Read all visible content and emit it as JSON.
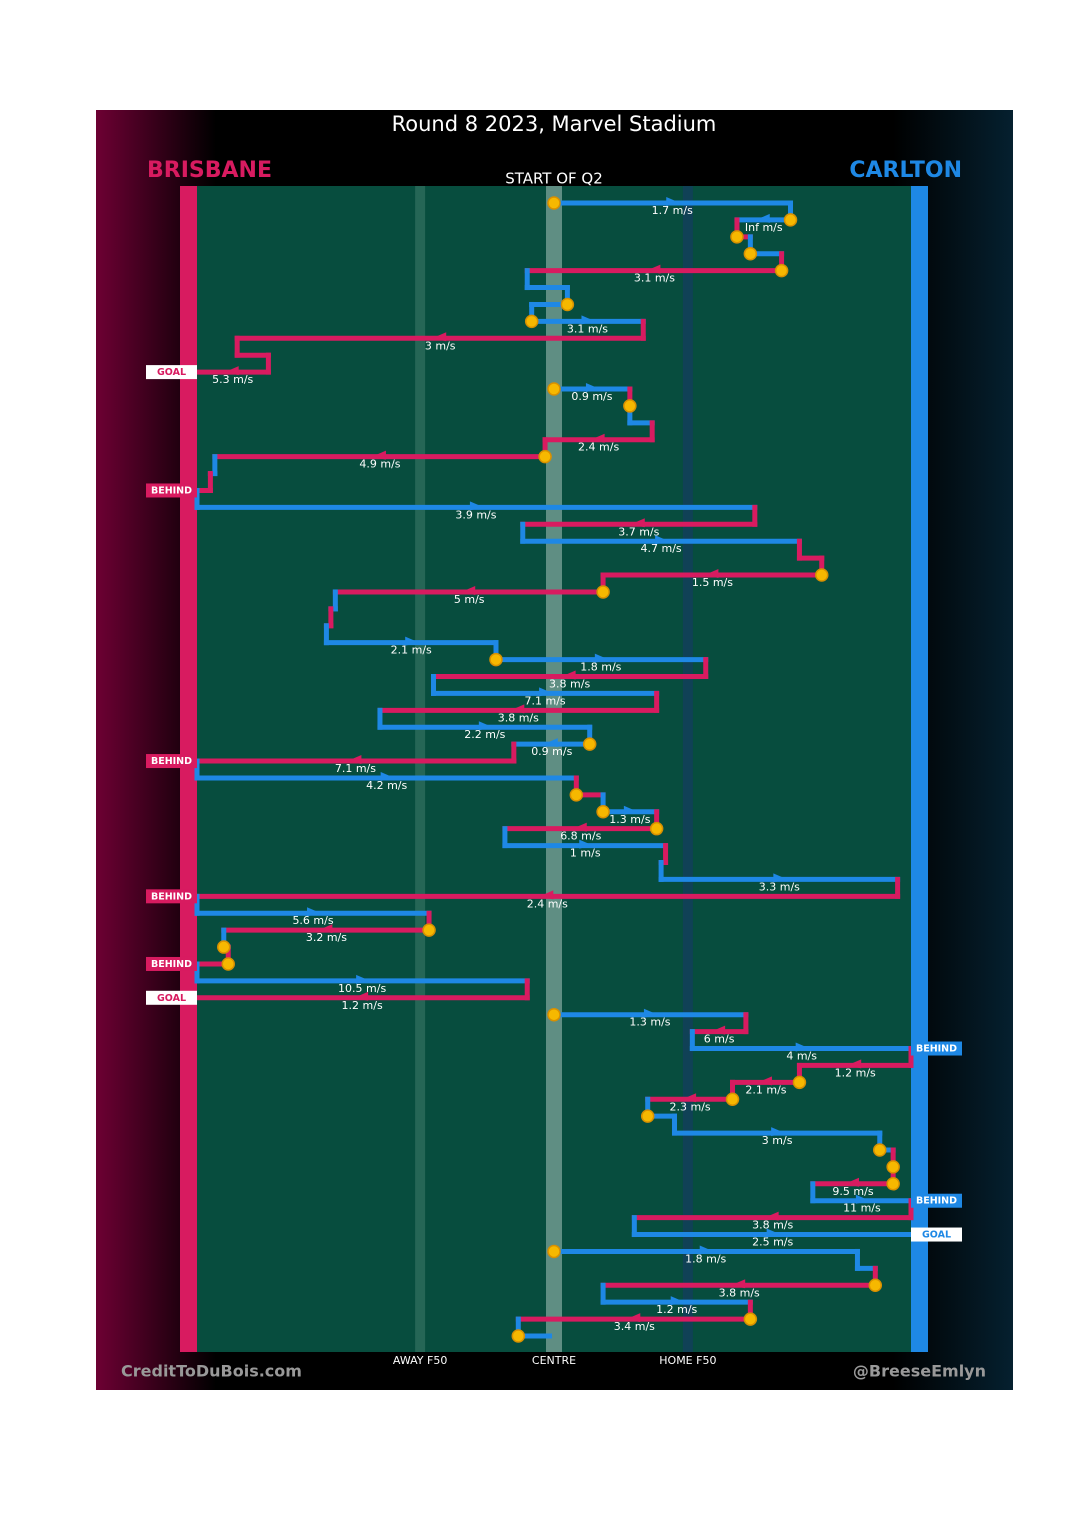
{
  "chart_data": {
    "type": "possession-chain",
    "title": "Round 8 2023, Marvel Stadium",
    "subtitle": "START OF Q2",
    "teams": [
      {
        "name": "BRISBANE",
        "color": "#d81b60"
      },
      {
        "name": "CARLTON",
        "color": "#1e88e5"
      }
    ],
    "xlim": [
      0,
      160
    ],
    "xticks": [
      {
        "value": 50,
        "label": "AWAY F50"
      },
      {
        "value": 80,
        "label": "CENTRE"
      },
      {
        "value": 110,
        "label": "HOME F50"
      }
    ],
    "segments": [
      {
        "team": 1,
        "x": [
          80,
          133
        ],
        "label": "1.7 m/s",
        "stoppage": true
      },
      {
        "team": 1,
        "x": [
          133,
          121
        ],
        "label": "Inf m/s",
        "stoppage": true
      },
      {
        "team": 0,
        "x": [
          121,
          124
        ],
        "stoppage": true
      },
      {
        "team": 1,
        "x": [
          124,
          131
        ],
        "stoppage": true
      },
      {
        "team": 0,
        "x": [
          131,
          74
        ],
        "label": "3.1 m/s",
        "stoppage": true
      },
      {
        "team": 1,
        "x": [
          74,
          83
        ]
      },
      {
        "team": 1,
        "x": [
          83,
          75
        ],
        "stoppage": true
      },
      {
        "team": 1,
        "x": [
          75,
          100
        ],
        "label": "3.1 m/s",
        "stoppage": true
      },
      {
        "team": 0,
        "x": [
          100,
          9
        ],
        "label": "3 m/s"
      },
      {
        "team": 0,
        "x": [
          9,
          16
        ]
      },
      {
        "team": 0,
        "x": [
          16,
          0
        ],
        "label": "5.3 m/s",
        "outcome": "GOAL"
      },
      {
        "team": 1,
        "x": [
          80,
          97
        ],
        "label": "0.9 m/s",
        "stoppage": true
      },
      {
        "team": 0,
        "x": [
          97,
          97
        ],
        "stoppage": true
      },
      {
        "team": 1,
        "x": [
          97,
          102
        ]
      },
      {
        "team": 0,
        "x": [
          102,
          78
        ],
        "label": "2.4 m/s"
      },
      {
        "team": 0,
        "x": [
          78,
          4
        ],
        "label": "4.9 m/s",
        "stoppage": true
      },
      {
        "team": 1,
        "x": [
          4,
          3
        ]
      },
      {
        "team": 0,
        "x": [
          3,
          0
        ],
        "outcome": "BEHIND"
      },
      {
        "team": 1,
        "x": [
          0,
          125
        ],
        "label": "3.9 m/s"
      },
      {
        "team": 0,
        "x": [
          125,
          73
        ],
        "label": "3.7 m/s"
      },
      {
        "team": 1,
        "x": [
          73,
          135
        ],
        "label": "4.7 m/s"
      },
      {
        "team": 0,
        "x": [
          135,
          140
        ]
      },
      {
        "team": 0,
        "x": [
          140,
          91
        ],
        "label": "1.5 m/s",
        "stoppage": true
      },
      {
        "team": 0,
        "x": [
          91,
          31
        ],
        "label": "5 m/s",
        "stoppage": true
      },
      {
        "team": 1,
        "x": [
          31,
          30
        ]
      },
      {
        "team": 0,
        "x": [
          30,
          29
        ]
      },
      {
        "team": 1,
        "x": [
          29,
          67
        ],
        "label": "2.1 m/s"
      },
      {
        "team": 1,
        "x": [
          67,
          114
        ],
        "label": "1.8 m/s",
        "stoppage": true
      },
      {
        "team": 0,
        "x": [
          114,
          53
        ],
        "label": "3.8 m/s"
      },
      {
        "team": 1,
        "x": [
          53,
          103
        ],
        "label": "7.1 m/s"
      },
      {
        "team": 0,
        "x": [
          103,
          41
        ],
        "label": "3.8 m/s"
      },
      {
        "team": 1,
        "x": [
          41,
          88
        ],
        "label": "2.2 m/s"
      },
      {
        "team": 1,
        "x": [
          88,
          71
        ],
        "label": "0.9 m/s",
        "stoppage": true
      },
      {
        "team": 0,
        "x": [
          71,
          0
        ],
        "label": "7.1 m/s",
        "outcome": "BEHIND"
      },
      {
        "team": 1,
        "x": [
          0,
          85
        ],
        "label": "4.2 m/s"
      },
      {
        "team": 0,
        "x": [
          85,
          91
        ],
        "stoppage": true
      },
      {
        "team": 1,
        "x": [
          91,
          103
        ],
        "label": "1.3 m/s",
        "stoppage": true
      },
      {
        "team": 0,
        "x": [
          103,
          69
        ],
        "label": "6.8 m/s",
        "stoppage": true
      },
      {
        "team": 1,
        "x": [
          69,
          105
        ],
        "label": "1 m/s"
      },
      {
        "team": 0,
        "x": [
          105,
          104
        ]
      },
      {
        "team": 1,
        "x": [
          104,
          157
        ],
        "label": "3.3 m/s"
      },
      {
        "team": 0,
        "x": [
          157,
          0
        ],
        "label": "2.4 m/s",
        "outcome": "BEHIND"
      },
      {
        "team": 1,
        "x": [
          0,
          52
        ],
        "label": "5.6 m/s"
      },
      {
        "team": 0,
        "x": [
          52,
          6
        ],
        "label": "3.2 m/s",
        "stoppage": true
      },
      {
        "team": 1,
        "x": [
          6,
          7
        ],
        "stoppage": true
      },
      {
        "team": 0,
        "x": [
          7,
          0
        ],
        "outcome": "BEHIND",
        "stoppage": true
      },
      {
        "team": 1,
        "x": [
          0,
          74
        ],
        "label": "10.5 m/s"
      },
      {
        "team": 0,
        "x": [
          74,
          0
        ],
        "label": "1.2 m/s",
        "outcome": "GOAL"
      },
      {
        "team": 1,
        "x": [
          80,
          123
        ],
        "label": "1.3 m/s",
        "stoppage": true
      },
      {
        "team": 0,
        "x": [
          123,
          111
        ],
        "label": "6 m/s"
      },
      {
        "team": 1,
        "x": [
          111,
          160
        ],
        "label": "4 m/s",
        "outcome": "BEHIND"
      },
      {
        "team": 0,
        "x": [
          160,
          135
        ],
        "label": "1.2 m/s"
      },
      {
        "team": 0,
        "x": [
          135,
          120
        ],
        "label": "2.1 m/s",
        "stoppage": true
      },
      {
        "team": 0,
        "x": [
          120,
          101
        ],
        "label": "2.3 m/s",
        "stoppage": true
      },
      {
        "team": 1,
        "x": [
          101,
          107
        ],
        "stoppage": true
      },
      {
        "team": 1,
        "x": [
          107,
          153
        ],
        "label": "3 m/s"
      },
      {
        "team": 1,
        "x": [
          153,
          156
        ],
        "stoppage": true
      },
      {
        "team": 0,
        "x": [
          156,
          156
        ],
        "stoppage": true
      },
      {
        "team": 0,
        "x": [
          156,
          138
        ],
        "label": "9.5 m/s",
        "stoppage": true
      },
      {
        "team": 1,
        "x": [
          138,
          160
        ],
        "label": "11 m/s",
        "outcome": "BEHIND"
      },
      {
        "team": 0,
        "x": [
          160,
          98
        ],
        "label": "3.8 m/s"
      },
      {
        "team": 1,
        "x": [
          98,
          160
        ],
        "label": "2.5 m/s",
        "outcome": "GOAL"
      },
      {
        "team": 1,
        "x": [
          80,
          148
        ],
        "label": "1.8 m/s",
        "stoppage": true
      },
      {
        "team": 1,
        "x": [
          148,
          152
        ]
      },
      {
        "team": 0,
        "x": [
          152,
          91
        ],
        "label": "3.8 m/s",
        "stoppage": true
      },
      {
        "team": 1,
        "x": [
          91,
          124
        ],
        "label": "1.2 m/s"
      },
      {
        "team": 0,
        "x": [
          124,
          72
        ],
        "label": "3.4 m/s",
        "stoppage": true
      },
      {
        "team": 1,
        "x": [
          72,
          79
        ],
        "stoppage": true
      }
    ],
    "credits": [
      "CreditToDuBois.com",
      "@BreeseEmlyn"
    ]
  }
}
